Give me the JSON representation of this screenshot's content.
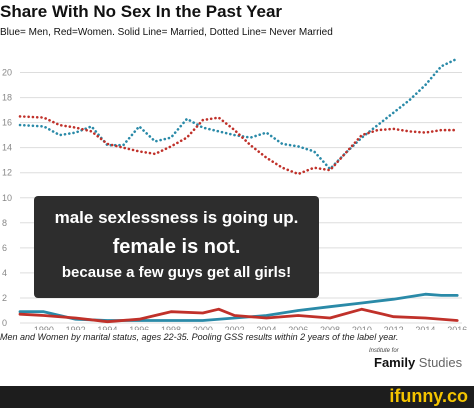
{
  "title": "Share With No Sex In the Past Year",
  "subtitle": "Blue= Men, Red=Women. Solid Line= Married, Dotted Line= Never Married",
  "overlay": {
    "line1": "male sexlessness is going up.",
    "line2": "female is not.",
    "line3": "because a few guys get all girls!"
  },
  "caption": "Men and Women by marital status, ages 22-35. Pooling GSS results within 2 years of the label year.",
  "brand": {
    "note": "Institute for",
    "name_bold": "Family",
    "name_light": " Studies"
  },
  "footer": {
    "watermark": "ifunny.co"
  },
  "colors": {
    "men": "#2a8aa8",
    "women": "#c0312a",
    "grid": "#dddddd"
  },
  "chart_data": {
    "type": "line",
    "x_ticks": [
      "1990",
      "1992",
      "1994",
      "1996",
      "1998",
      "2000",
      "2002",
      "2004",
      "2006",
      "2008",
      "2010",
      "2012",
      "2014",
      "2016"
    ],
    "y_ticks": [
      "0",
      "2",
      "4",
      "6",
      "8",
      "10",
      "12",
      "14",
      "16",
      "18",
      "20"
    ],
    "xlim": [
      1988.5,
      2016.3
    ],
    "ylim": [
      0,
      21
    ],
    "grid": true,
    "series": [
      {
        "key": "men_never_married",
        "color": "#2a8aa8",
        "style": "dotted",
        "points": [
          [
            1988.5,
            15.8
          ],
          [
            1990,
            15.7
          ],
          [
            1991,
            15.0
          ],
          [
            1992,
            15.2
          ],
          [
            1993,
            15.7
          ],
          [
            1994,
            14.2
          ],
          [
            1995,
            14.2
          ],
          [
            1996,
            15.7
          ],
          [
            1997,
            14.5
          ],
          [
            1998,
            14.8
          ],
          [
            1999,
            16.3
          ],
          [
            2000,
            15.6
          ],
          [
            2001,
            15.3
          ],
          [
            2002,
            15.0
          ],
          [
            2003,
            14.8
          ],
          [
            2004,
            15.2
          ],
          [
            2005,
            14.3
          ],
          [
            2006,
            14.1
          ],
          [
            2007,
            13.7
          ],
          [
            2008,
            12.3
          ],
          [
            2009,
            13.6
          ],
          [
            2010,
            14.8
          ],
          [
            2011,
            15.8
          ],
          [
            2012,
            16.8
          ],
          [
            2013,
            17.8
          ],
          [
            2014,
            19.0
          ],
          [
            2015,
            20.5
          ],
          [
            2016,
            21.1
          ]
        ]
      },
      {
        "key": "women_never_married",
        "color": "#c0312a",
        "style": "dotted",
        "points": [
          [
            1988.5,
            16.5
          ],
          [
            1990,
            16.4
          ],
          [
            1991,
            15.8
          ],
          [
            1992,
            15.6
          ],
          [
            1993,
            15.3
          ],
          [
            1994,
            14.3
          ],
          [
            1995,
            14.0
          ],
          [
            1996,
            13.7
          ],
          [
            1997,
            13.5
          ],
          [
            1998,
            14.1
          ],
          [
            1999,
            14.8
          ],
          [
            2000,
            16.2
          ],
          [
            2001,
            16.4
          ],
          [
            2002,
            15.4
          ],
          [
            2003,
            14.2
          ],
          [
            2004,
            13.2
          ],
          [
            2005,
            12.4
          ],
          [
            2006,
            11.9
          ],
          [
            2007,
            12.4
          ],
          [
            2008,
            12.2
          ],
          [
            2009,
            13.6
          ],
          [
            2010,
            15.0
          ],
          [
            2011,
            15.4
          ],
          [
            2012,
            15.5
          ],
          [
            2013,
            15.3
          ],
          [
            2014,
            15.2
          ],
          [
            2015,
            15.4
          ],
          [
            2016,
            15.4
          ]
        ]
      },
      {
        "key": "men_married",
        "color": "#2a8aa8",
        "style": "solid",
        "points": [
          [
            1988.5,
            0.9
          ],
          [
            1990,
            0.9
          ],
          [
            1992,
            0.3
          ],
          [
            1994,
            0.2
          ],
          [
            1996,
            0.2
          ],
          [
            1998,
            0.2
          ],
          [
            2000,
            0.2
          ],
          [
            2002,
            0.4
          ],
          [
            2004,
            0.6
          ],
          [
            2006,
            1.0
          ],
          [
            2008,
            1.3
          ],
          [
            2010,
            1.6
          ],
          [
            2012,
            1.9
          ],
          [
            2014,
            2.3
          ],
          [
            2015,
            2.2
          ],
          [
            2016,
            2.2
          ]
        ]
      },
      {
        "key": "women_married",
        "color": "#c0312a",
        "style": "solid",
        "points": [
          [
            1988.5,
            0.7
          ],
          [
            1990,
            0.6
          ],
          [
            1992,
            0.4
          ],
          [
            1994,
            0.1
          ],
          [
            1996,
            0.3
          ],
          [
            1998,
            0.9
          ],
          [
            2000,
            0.8
          ],
          [
            2001,
            1.1
          ],
          [
            2002,
            0.6
          ],
          [
            2004,
            0.4
          ],
          [
            2006,
            0.6
          ],
          [
            2008,
            0.4
          ],
          [
            2010,
            1.1
          ],
          [
            2012,
            0.5
          ],
          [
            2014,
            0.4
          ],
          [
            2016,
            0.2
          ]
        ]
      }
    ]
  }
}
